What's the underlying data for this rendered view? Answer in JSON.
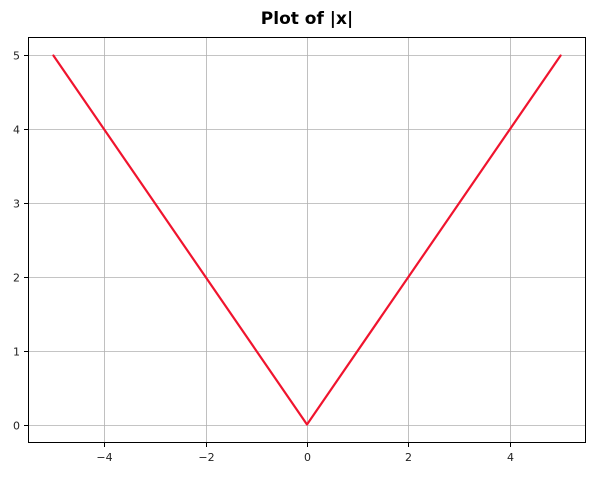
{
  "chart_data": {
    "type": "line",
    "title": "Plot of |x|",
    "xlabel": "",
    "ylabel": "",
    "xlim": [
      -5.5,
      5.5
    ],
    "ylim": [
      -0.25,
      5.25
    ],
    "x_ticks": [
      -4,
      -2,
      0,
      2,
      4
    ],
    "x_tick_labels": [
      "−4",
      "−2",
      "0",
      "2",
      "4"
    ],
    "y_ticks": [
      0,
      1,
      2,
      3,
      4,
      5
    ],
    "y_tick_labels": [
      "0",
      "1",
      "2",
      "3",
      "4",
      "5"
    ],
    "grid": true,
    "series": [
      {
        "color": "#f0142e",
        "x": [
          -5,
          0,
          5
        ],
        "y": [
          5,
          0,
          5
        ]
      }
    ]
  }
}
